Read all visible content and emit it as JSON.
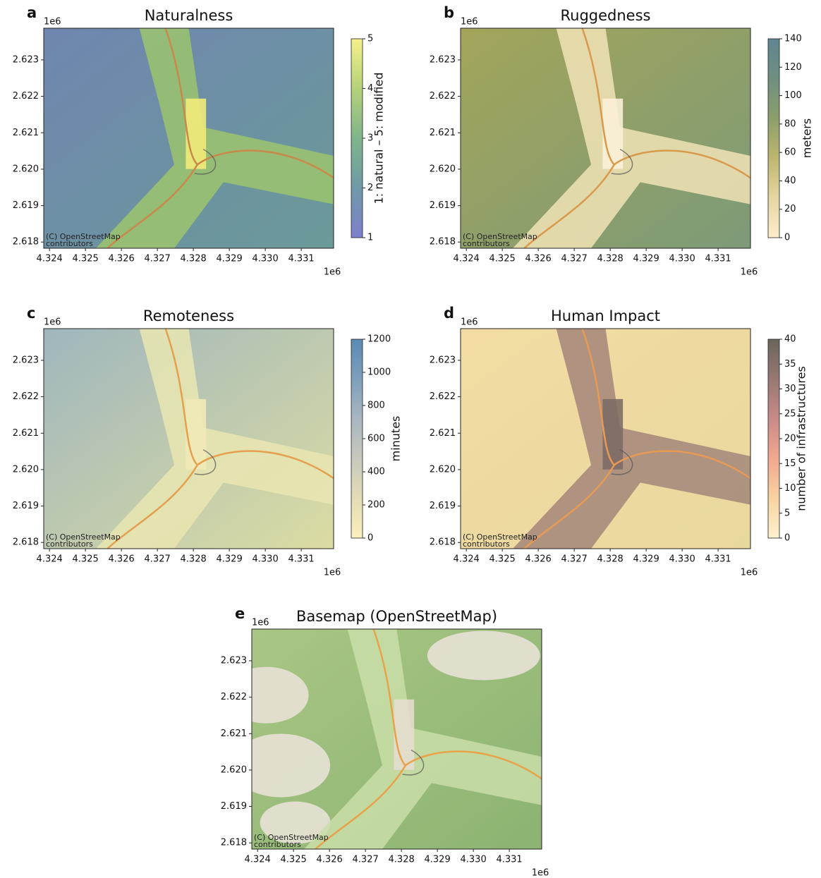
{
  "chart_data": [
    {
      "type": "map",
      "panel_label": "a",
      "title": "Naturalness",
      "x_offset": "1e6",
      "y_offset": "1e6",
      "attribution": [
        "(C) OpenStreetMap",
        "contributors"
      ],
      "xlim": [
        4.32384,
        4.3319
      ],
      "xticks": [
        4.324,
        4.325,
        4.326,
        4.327,
        4.328,
        4.329,
        {
          "value": 4.33,
          "label": "4.330"
        },
        4.331
      ],
      "ylim": [
        2.61783,
        2.62387
      ],
      "yticks": [
        {
          "value": 2.618,
          "label": "2.618"
        },
        2.619,
        {
          "value": 2.62,
          "label": "2.620"
        },
        2.621,
        2.622,
        2.623
      ],
      "colorbar": {
        "label": "1: natural – 5: modified",
        "lim": [
          1,
          5
        ],
        "ticks": [
          1,
          2,
          3,
          4,
          5
        ],
        "colors": [
          "#7d80cc",
          "#6f9aa8",
          "#7fb58a",
          "#b5d27a",
          "#f6f08c"
        ]
      }
    },
    {
      "type": "map",
      "panel_label": "b",
      "title": "Ruggedness",
      "x_offset": "1e6",
      "y_offset": "1e6",
      "attribution": [
        "(C) OpenStreetMap",
        "contributors"
      ],
      "xlim": [
        4.32384,
        4.3319
      ],
      "xticks": [
        4.324,
        4.325,
        4.326,
        4.327,
        4.328,
        4.329,
        {
          "value": 4.33,
          "label": "4.330"
        },
        4.331
      ],
      "ylim": [
        2.61783,
        2.62387
      ],
      "yticks": [
        {
          "value": 2.618,
          "label": "2.618"
        },
        2.619,
        {
          "value": 2.62,
          "label": "2.620"
        },
        2.621,
        2.622,
        2.623
      ],
      "colorbar": {
        "label": "meters",
        "lim": [
          0,
          140
        ],
        "ticks": [
          0,
          20,
          40,
          60,
          80,
          100,
          120,
          140
        ],
        "colors": [
          "#fdeccb",
          "#e6d6a0",
          "#bdb66f",
          "#8c9f6a",
          "#6f8f80",
          "#5f8591"
        ]
      }
    },
    {
      "type": "map",
      "panel_label": "c",
      "title": "Remoteness",
      "x_offset": "1e6",
      "y_offset": "1e6",
      "attribution": [
        "(C) OpenStreetMap",
        "contributors"
      ],
      "xlim": [
        4.32384,
        4.3319
      ],
      "xticks": [
        4.324,
        4.325,
        4.326,
        4.327,
        4.328,
        4.329,
        {
          "value": 4.33,
          "label": "4.330"
        },
        4.331
      ],
      "ylim": [
        2.61783,
        2.62387
      ],
      "yticks": [
        {
          "value": 2.618,
          "label": "2.618"
        },
        2.619,
        {
          "value": 2.62,
          "label": "2.620"
        },
        2.621,
        2.622,
        2.623
      ],
      "colorbar": {
        "label": "minutes",
        "lim": [
          0,
          1200
        ],
        "ticks": [
          0,
          200,
          400,
          600,
          800,
          1000,
          1200
        ],
        "colors": [
          "#fbf0bb",
          "#e3dcb5",
          "#c8c9bd",
          "#a8b6c0",
          "#7ea0bc",
          "#5a8ab3"
        ]
      }
    },
    {
      "type": "map",
      "panel_label": "d",
      "title": "Human Impact",
      "x_offset": "1e6",
      "y_offset": "1e6",
      "attribution": [
        "(C) OpenStreetMap",
        "contributors"
      ],
      "xlim": [
        4.32384,
        4.3319
      ],
      "xticks": [
        4.324,
        4.325,
        4.326,
        4.327,
        4.328,
        4.329,
        {
          "value": 4.33,
          "label": "4.330"
        },
        4.331
      ],
      "ylim": [
        2.61783,
        2.62387
      ],
      "yticks": [
        {
          "value": 2.618,
          "label": "2.618"
        },
        2.619,
        {
          "value": 2.62,
          "label": "2.620"
        },
        2.621,
        2.622,
        2.623
      ],
      "colorbar": {
        "label": "number of infrastructures",
        "lim": [
          0,
          40
        ],
        "ticks": [
          0,
          5,
          10,
          15,
          20,
          25,
          30,
          35,
          40
        ],
        "colors": [
          "#fef1cf",
          "#f9d39f",
          "#f2a88e",
          "#c98a88",
          "#987873",
          "#6a655b"
        ]
      }
    },
    {
      "type": "map",
      "panel_label": "e",
      "title": "Basemap (OpenStreetMap)",
      "x_offset": "1e6",
      "y_offset": "1e6",
      "attribution": [
        "(C) OpenStreetMap",
        "contributors"
      ],
      "xlim": [
        4.32384,
        4.3319
      ],
      "xticks": [
        4.324,
        4.325,
        4.326,
        4.327,
        4.328,
        4.329,
        {
          "value": 4.33,
          "label": "4.330"
        },
        4.331
      ],
      "ylim": [
        2.61783,
        2.62387
      ],
      "yticks": [
        {
          "value": 2.618,
          "label": "2.618"
        },
        2.619,
        {
          "value": 2.62,
          "label": "2.620"
        },
        2.621,
        2.622,
        2.623
      ]
    }
  ]
}
